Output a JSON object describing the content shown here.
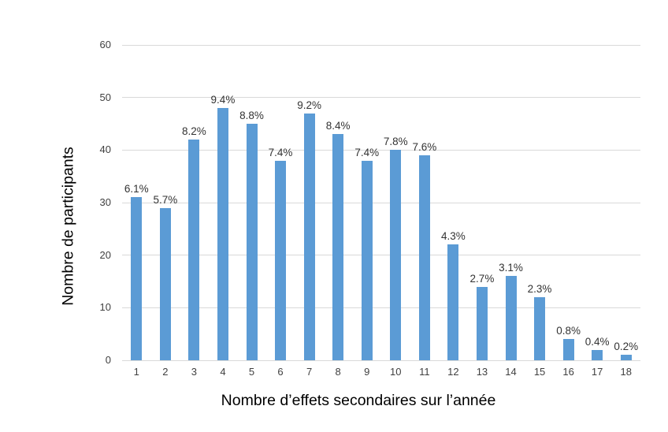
{
  "chart_data": {
    "type": "bar",
    "title": "",
    "xlabel": "Nombre d’effets secondaires sur l’année",
    "ylabel": "Nombre de participants",
    "categories": [
      "1",
      "2",
      "3",
      "4",
      "5",
      "6",
      "7",
      "8",
      "9",
      "10",
      "11",
      "12",
      "13",
      "14",
      "15",
      "16",
      "17",
      "18"
    ],
    "values": [
      31,
      29,
      42,
      48,
      45,
      38,
      47,
      43,
      38,
      40,
      39,
      22,
      14,
      16,
      12,
      4,
      2,
      1
    ],
    "data_labels": [
      "6.1%",
      "5.7%",
      "8.2%",
      "9.4%",
      "8.8%",
      "7.4%",
      "9.2%",
      "8.4%",
      "7.4%",
      "7.8%",
      "7.6%",
      "4.3%",
      "2.7%",
      "3.1%",
      "2.3%",
      "0.8%",
      "0.4%",
      "0.2%"
    ],
    "ylim": [
      0,
      60
    ],
    "yticks": [
      0,
      10,
      20,
      30,
      40,
      50,
      60
    ],
    "grid": true,
    "legend": false,
    "bar_color": "#5b9bd5",
    "gridline_color": "#d9d9d9",
    "tick_label_color": "#404040",
    "data_label_color": "#333333",
    "background_color": "#ffffff"
  }
}
